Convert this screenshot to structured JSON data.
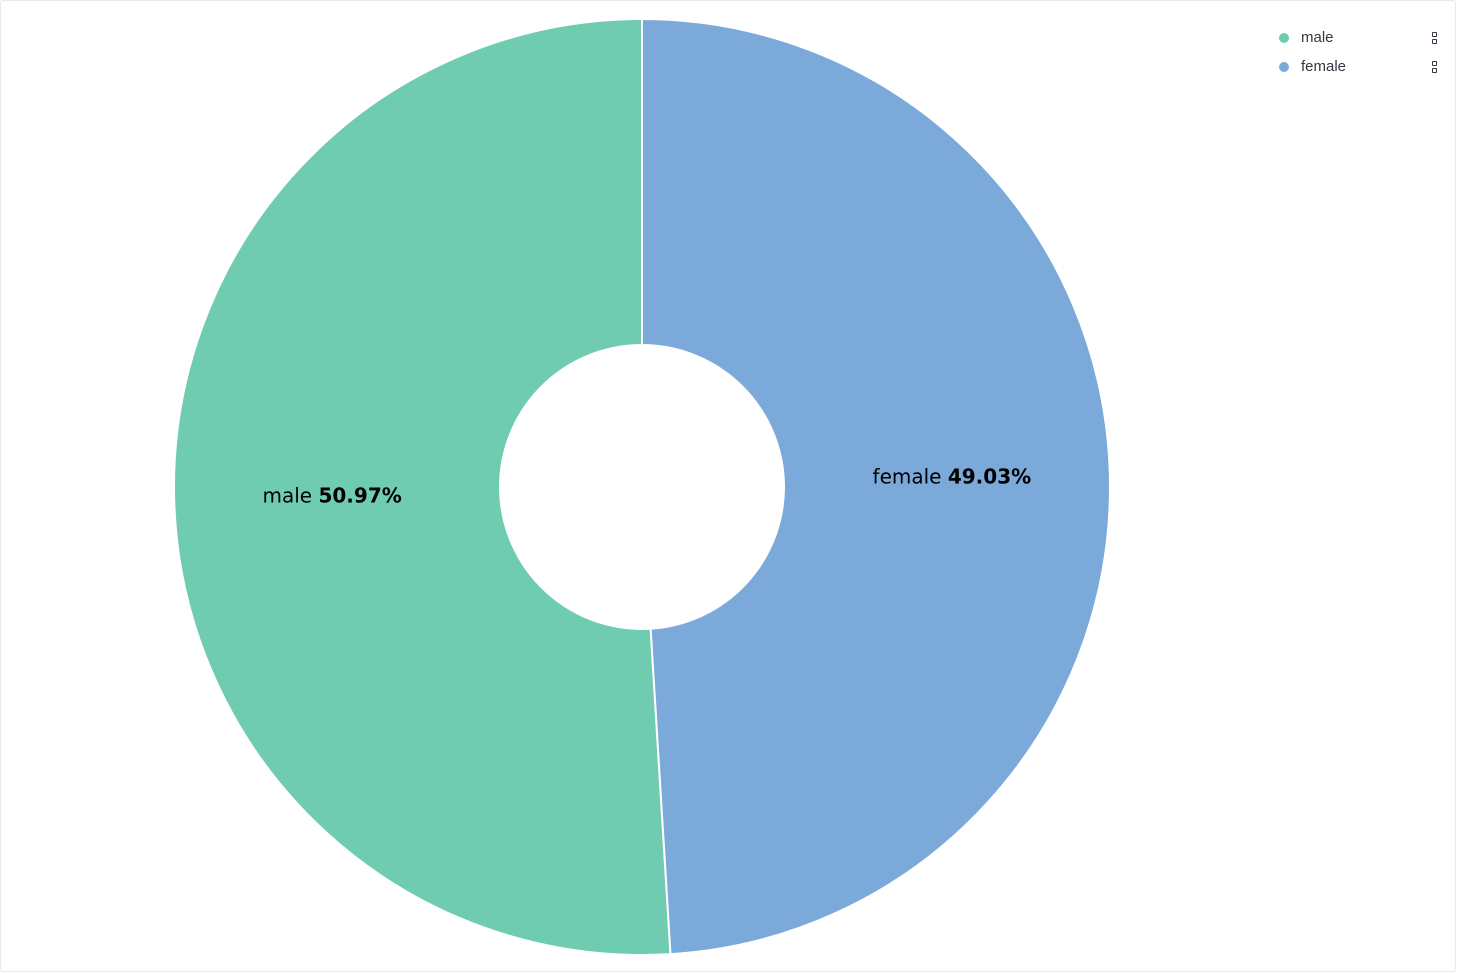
{
  "chart_data": {
    "type": "pie",
    "donut": true,
    "title": "",
    "legend_position": "top-right",
    "categories": [
      "male",
      "female"
    ],
    "values": [
      50.97,
      49.03
    ],
    "value_labels": [
      "50.97%",
      "49.03%"
    ],
    "colors": [
      "#6fccb1",
      "#7ba9da"
    ]
  },
  "legend": {
    "items": [
      {
        "label": "male",
        "color": "#6fccb1",
        "menu_icon": "more-vertical-icon"
      },
      {
        "label": "female",
        "color": "#7ba9da",
        "menu_icon": "more-vertical-icon"
      }
    ]
  }
}
